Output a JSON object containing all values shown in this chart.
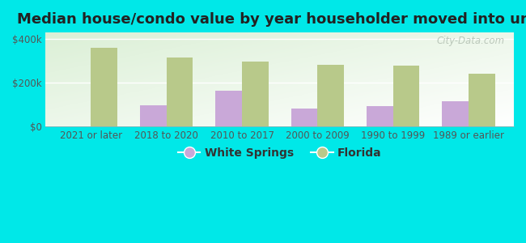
{
  "title": "Median house/condo value by year householder moved into unit",
  "categories": [
    "2021 or later",
    "2018 to 2020",
    "2010 to 2017",
    "2000 to 2009",
    "1990 to 1999",
    "1989 or earlier"
  ],
  "white_springs": [
    null,
    95000,
    162000,
    82000,
    90000,
    115000
  ],
  "florida": [
    360000,
    315000,
    295000,
    280000,
    278000,
    240000
  ],
  "white_springs_color": "#c9a8d8",
  "florida_color": "#b8c98a",
  "background_color": "#00e8e8",
  "plot_bg_color": "#e0f0e0",
  "plot_bg_white": "#f8fff8",
  "ylim": [
    0,
    430000
  ],
  "ytick_labels": [
    "$0",
    "$200k",
    "$400k"
  ],
  "ytick_vals": [
    0,
    200000,
    400000
  ],
  "legend_labels": [
    "White Springs",
    "Florida"
  ],
  "watermark": "City-Data.com",
  "title_fontsize": 13,
  "tick_fontsize": 8.5,
  "legend_fontsize": 10,
  "bar_width": 0.35
}
